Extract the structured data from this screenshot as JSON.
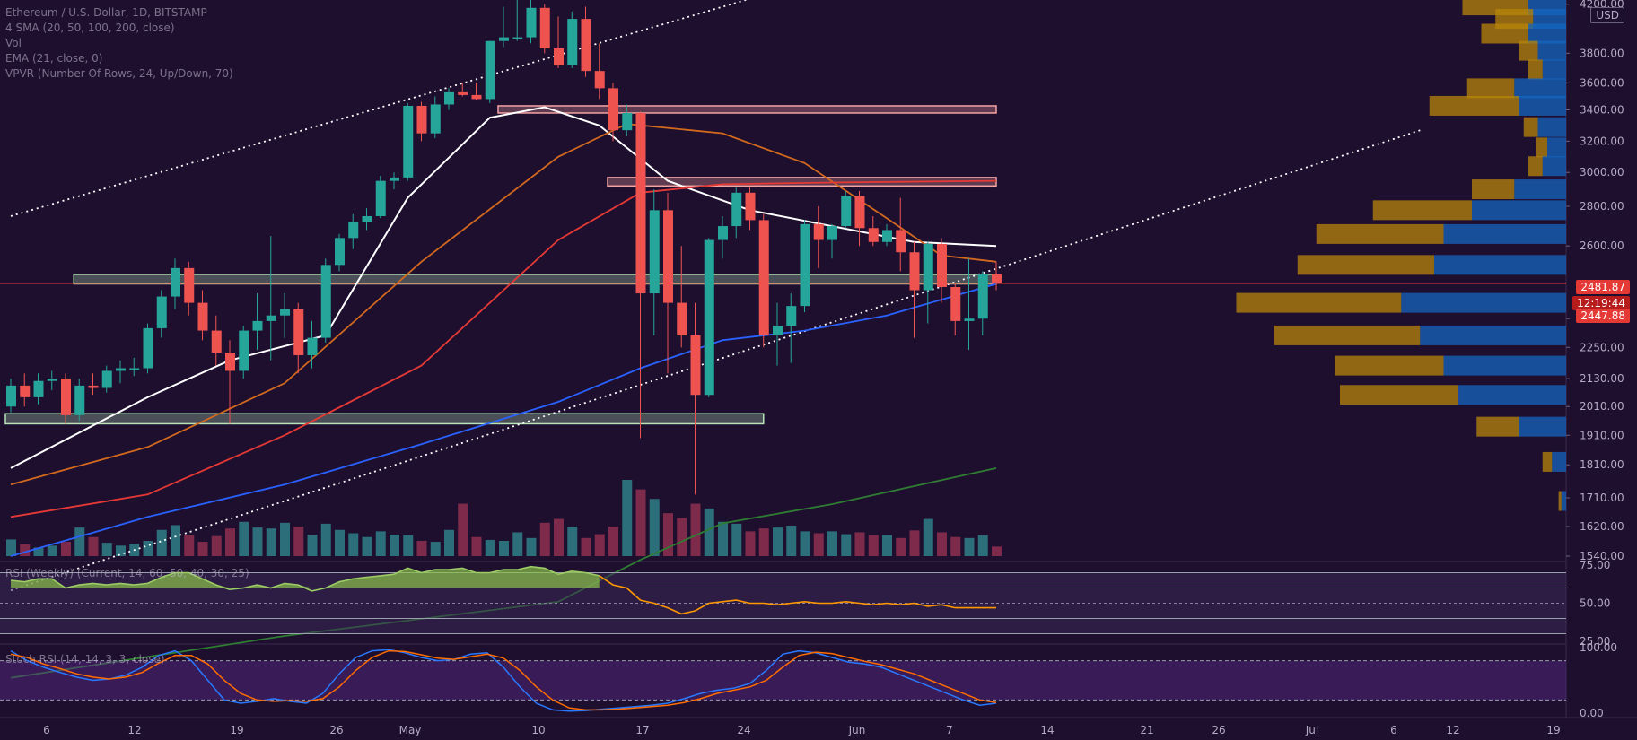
{
  "legend": {
    "symbol": "Ethereum / U.S. Dollar, 1D, BITSTAMP",
    "ma": "4 SMA (20, 50, 100, 200, close)",
    "vol": "Vol",
    "ema": "EMA (21, close, 0)",
    "vpvr": "VPVR (Number Of Rows, 24, Up/Down, 70)"
  },
  "indicators": {
    "rsi_label": "RSI (Weekly) (Current, 14, 60, 50, 40, 30, 25)",
    "stoch_label": "Stoch RSI (14, 14, 3, 3, close)"
  },
  "price_tags": {
    "last": "2481.87",
    "countdown": "12:19:44",
    "secondary": "2447.88",
    "currency": "USD"
  },
  "colors": {
    "background": "#1e0f2f",
    "up": "#26a69a",
    "down": "#ef5350",
    "sma20": "#ffffff",
    "sma50": "#d2691e",
    "sma100": "#e53935",
    "sma200": "#2e7d32",
    "ema21": "#2962ff",
    "vpvr_up": "#1565c0",
    "vpvr_down": "#b8860b"
  },
  "chart_data": {
    "type": "candlestick",
    "title": "Ethereum / U.S. Dollar, 1D, BITSTAMP",
    "y_ticks": [
      4200,
      3800,
      3600,
      3400,
      3200,
      3000,
      2800,
      2600,
      2370,
      2250,
      2130,
      2010,
      1910,
      1810,
      1710,
      1620,
      1540
    ],
    "y_tick_labels": [
      "4200.00",
      "3800.00",
      "3600.00",
      "3400.00",
      "3200.00",
      "3000.00",
      "2800.00",
      "2600.00",
      "2370.00",
      "2250.00",
      "2130.00",
      "2010.00",
      "1910.00",
      "1810.00",
      "1710.00",
      "1620.00",
      "1540.00"
    ],
    "x_labels": [
      "6",
      "12",
      "19",
      "26",
      "May",
      "10",
      "17",
      "24",
      "Jun",
      "7",
      "14",
      "21",
      "26",
      "Jul",
      "6",
      "12",
      "19"
    ],
    "candles": [
      {
        "o": 2010,
        "h": 2130,
        "l": 1990,
        "c": 2100
      },
      {
        "o": 2100,
        "h": 2150,
        "l": 2010,
        "c": 2050
      },
      {
        "o": 2050,
        "h": 2150,
        "l": 2020,
        "c": 2120
      },
      {
        "o": 2120,
        "h": 2160,
        "l": 2080,
        "c": 2130
      },
      {
        "o": 2130,
        "h": 2150,
        "l": 1950,
        "c": 1980
      },
      {
        "o": 1980,
        "h": 2130,
        "l": 1960,
        "c": 2100
      },
      {
        "o": 2100,
        "h": 2150,
        "l": 2060,
        "c": 2090
      },
      {
        "o": 2090,
        "h": 2180,
        "l": 2070,
        "c": 2160
      },
      {
        "o": 2160,
        "h": 2200,
        "l": 2110,
        "c": 2170
      },
      {
        "o": 2170,
        "h": 2210,
        "l": 2140,
        "c": 2170
      },
      {
        "o": 2170,
        "h": 2350,
        "l": 2150,
        "c": 2330
      },
      {
        "o": 2330,
        "h": 2460,
        "l": 2290,
        "c": 2440
      },
      {
        "o": 2440,
        "h": 2560,
        "l": 2400,
        "c": 2530
      },
      {
        "o": 2530,
        "h": 2550,
        "l": 2380,
        "c": 2420
      },
      {
        "o": 2420,
        "h": 2460,
        "l": 2280,
        "c": 2320
      },
      {
        "o": 2320,
        "h": 2380,
        "l": 2180,
        "c": 2230
      },
      {
        "o": 2230,
        "h": 2280,
        "l": 1950,
        "c": 2160
      },
      {
        "o": 2160,
        "h": 2340,
        "l": 2130,
        "c": 2320
      },
      {
        "o": 2320,
        "h": 2450,
        "l": 2240,
        "c": 2360
      },
      {
        "o": 2360,
        "h": 2650,
        "l": 2200,
        "c": 2380
      },
      {
        "o": 2380,
        "h": 2450,
        "l": 2290,
        "c": 2400
      },
      {
        "o": 2400,
        "h": 2420,
        "l": 2150,
        "c": 2220
      },
      {
        "o": 2220,
        "h": 2360,
        "l": 2170,
        "c": 2290
      },
      {
        "o": 2290,
        "h": 2560,
        "l": 2270,
        "c": 2540
      },
      {
        "o": 2540,
        "h": 2660,
        "l": 2520,
        "c": 2640
      },
      {
        "o": 2640,
        "h": 2760,
        "l": 2590,
        "c": 2720
      },
      {
        "o": 2720,
        "h": 2790,
        "l": 2680,
        "c": 2750
      },
      {
        "o": 2750,
        "h": 2980,
        "l": 2740,
        "c": 2950
      },
      {
        "o": 2950,
        "h": 3000,
        "l": 2900,
        "c": 2970
      },
      {
        "o": 2970,
        "h": 3450,
        "l": 2950,
        "c": 3430
      },
      {
        "o": 3430,
        "h": 3460,
        "l": 3200,
        "c": 3250
      },
      {
        "o": 3250,
        "h": 3500,
        "l": 3220,
        "c": 3440
      },
      {
        "o": 3440,
        "h": 3560,
        "l": 3400,
        "c": 3530
      },
      {
        "o": 3530,
        "h": 3600,
        "l": 3500,
        "c": 3510
      },
      {
        "o": 3510,
        "h": 3600,
        "l": 3470,
        "c": 3480
      },
      {
        "o": 3480,
        "h": 3900,
        "l": 3450,
        "c": 3900
      },
      {
        "o": 3900,
        "h": 4180,
        "l": 3850,
        "c": 3930
      },
      {
        "o": 3930,
        "h": 4360,
        "l": 3900,
        "c": 3930
      },
      {
        "o": 3930,
        "h": 4380,
        "l": 3880,
        "c": 4170
      },
      {
        "o": 4170,
        "h": 4200,
        "l": 3800,
        "c": 3840
      },
      {
        "o": 3840,
        "h": 4100,
        "l": 3700,
        "c": 3720
      },
      {
        "o": 3720,
        "h": 4140,
        "l": 3700,
        "c": 4080
      },
      {
        "o": 4080,
        "h": 4180,
        "l": 3640,
        "c": 3680
      },
      {
        "o": 3680,
        "h": 3880,
        "l": 3480,
        "c": 3560
      },
      {
        "o": 3560,
        "h": 3600,
        "l": 3200,
        "c": 3270
      },
      {
        "o": 3270,
        "h": 3440,
        "l": 3230,
        "c": 3380
      },
      {
        "o": 3380,
        "h": 3390,
        "l": 1900,
        "c": 2450
      },
      {
        "o": 2450,
        "h": 2900,
        "l": 2300,
        "c": 2780
      },
      {
        "o": 2780,
        "h": 2880,
        "l": 2150,
        "c": 2420
      },
      {
        "o": 2420,
        "h": 2600,
        "l": 2250,
        "c": 2300
      },
      {
        "o": 2300,
        "h": 2420,
        "l": 1720,
        "c": 2060
      },
      {
        "o": 2060,
        "h": 2640,
        "l": 2050,
        "c": 2630
      },
      {
        "o": 2630,
        "h": 2750,
        "l": 2560,
        "c": 2700
      },
      {
        "o": 2700,
        "h": 2910,
        "l": 2640,
        "c": 2880
      },
      {
        "o": 2880,
        "h": 2910,
        "l": 2680,
        "c": 2730
      },
      {
        "o": 2730,
        "h": 2760,
        "l": 2250,
        "c": 2300
      },
      {
        "o": 2300,
        "h": 2420,
        "l": 2180,
        "c": 2340
      },
      {
        "o": 2340,
        "h": 2450,
        "l": 2190,
        "c": 2410
      },
      {
        "o": 2410,
        "h": 2730,
        "l": 2390,
        "c": 2710
      },
      {
        "o": 2710,
        "h": 2800,
        "l": 2530,
        "c": 2630
      },
      {
        "o": 2630,
        "h": 2710,
        "l": 2560,
        "c": 2700
      },
      {
        "o": 2700,
        "h": 2890,
        "l": 2690,
        "c": 2860
      },
      {
        "o": 2860,
        "h": 2890,
        "l": 2600,
        "c": 2690
      },
      {
        "o": 2690,
        "h": 2750,
        "l": 2600,
        "c": 2620
      },
      {
        "o": 2620,
        "h": 2710,
        "l": 2600,
        "c": 2680
      },
      {
        "o": 2680,
        "h": 2850,
        "l": 2520,
        "c": 2580
      },
      {
        "o": 2580,
        "h": 2620,
        "l": 2290,
        "c": 2460
      },
      {
        "o": 2460,
        "h": 2620,
        "l": 2350,
        "c": 2610
      },
      {
        "o": 2610,
        "h": 2640,
        "l": 2420,
        "c": 2470
      },
      {
        "o": 2470,
        "h": 2480,
        "l": 2300,
        "c": 2360
      },
      {
        "o": 2360,
        "h": 2560,
        "l": 2240,
        "c": 2370
      },
      {
        "o": 2370,
        "h": 2520,
        "l": 2300,
        "c": 2510
      },
      {
        "o": 2510,
        "h": 2550,
        "l": 2460,
        "c": 2482
      }
    ],
    "volumes": [
      35,
      25,
      18,
      22,
      30,
      60,
      40,
      28,
      22,
      26,
      32,
      55,
      65,
      45,
      30,
      42,
      58,
      72,
      60,
      58,
      70,
      62,
      45,
      68,
      55,
      48,
      40,
      52,
      45,
      44,
      32,
      30,
      55,
      110,
      40,
      34,
      32,
      50,
      38,
      70,
      78,
      62,
      38,
      46,
      62,
      160,
      140,
      120,
      90,
      80,
      110,
      100,
      72,
      68,
      52,
      58,
      60,
      64,
      52,
      48,
      52,
      46,
      50,
      44,
      44,
      38,
      54,
      78,
      50,
      40,
      38,
      44,
      20
    ],
    "overlays": [
      {
        "name": "SMA 20",
        "color": "#ffffff",
        "points": [
          [
            0,
            1800
          ],
          [
            10,
            2050
          ],
          [
            16,
            2200
          ],
          [
            23,
            2300
          ],
          [
            29,
            2850
          ],
          [
            35,
            3350
          ],
          [
            39,
            3420
          ],
          [
            43,
            3300
          ],
          [
            48,
            2950
          ],
          [
            54,
            2780
          ],
          [
            60,
            2700
          ],
          [
            66,
            2620
          ],
          [
            72,
            2600
          ]
        ]
      },
      {
        "name": "SMA 50",
        "color": "#d2691e",
        "points": [
          [
            0,
            1750
          ],
          [
            10,
            1870
          ],
          [
            20,
            2110
          ],
          [
            30,
            2550
          ],
          [
            40,
            3100
          ],
          [
            45,
            3310
          ],
          [
            52,
            3250
          ],
          [
            58,
            3060
          ],
          [
            64,
            2740
          ],
          [
            68,
            2570
          ],
          [
            72,
            2550
          ]
        ]
      },
      {
        "name": "SMA 100",
        "color": "#e53935",
        "points": [
          [
            0,
            1650
          ],
          [
            10,
            1720
          ],
          [
            20,
            1910
          ],
          [
            30,
            2180
          ],
          [
            40,
            2630
          ],
          [
            46,
            2880
          ],
          [
            52,
            2930
          ],
          [
            60,
            2940
          ],
          [
            72,
            2950
          ]
        ]
      },
      {
        "name": "SMA 200",
        "color": "#2e7d32",
        "points": [
          [
            0,
            1220
          ],
          [
            20,
            1330
          ],
          [
            40,
            1420
          ],
          [
            46,
            1530
          ],
          [
            52,
            1630
          ],
          [
            60,
            1690
          ],
          [
            72,
            1800
          ]
        ]
      },
      {
        "name": "EMA 21",
        "color": "#2962ff",
        "points": [
          [
            0,
            1540
          ],
          [
            10,
            1650
          ],
          [
            20,
            1750
          ],
          [
            30,
            1880
          ],
          [
            40,
            2030
          ],
          [
            46,
            2170
          ],
          [
            52,
            2280
          ],
          [
            58,
            2320
          ],
          [
            64,
            2380
          ],
          [
            72,
            2480
          ]
        ]
      }
    ],
    "horizontal_zones": [
      {
        "from": 3380,
        "to": 3430,
        "x1": 36,
        "x2": 72,
        "color": "#f4a3a3"
      },
      {
        "from": 2920,
        "to": 2970,
        "x1": 44,
        "x2": 72,
        "color": "#f4a3a3"
      },
      {
        "from": 2480,
        "to": 2510,
        "x1": 5,
        "x2": 72,
        "color": "#b7e4b7"
      },
      {
        "from": 1950,
        "to": 1985,
        "x1": 0,
        "x2": 55,
        "color": "#b7e4b7"
      }
    ],
    "trendlines": [
      {
        "p1": [
          0,
          2750
        ],
        "p2": [
          56,
          4300
        ]
      },
      {
        "p1": [
          0,
          1450
        ],
        "p2": [
          103,
          3270
        ]
      }
    ],
    "vpvr": [
      {
        "price": 4190,
        "up": 40,
        "down": 70
      },
      {
        "price": 4080,
        "up": 35,
        "down": 40
      },
      {
        "price": 3960,
        "up": 40,
        "down": 50
      },
      {
        "price": 3820,
        "up": 30,
        "down": 20
      },
      {
        "price": 3690,
        "up": 25,
        "down": 15
      },
      {
        "price": 3560,
        "up": 55,
        "down": 50
      },
      {
        "price": 3430,
        "up": 50,
        "down": 95
      },
      {
        "price": 3290,
        "up": 30,
        "down": 15
      },
      {
        "price": 3160,
        "up": 20,
        "down": 12
      },
      {
        "price": 3040,
        "up": 25,
        "down": 15
      },
      {
        "price": 2900,
        "up": 55,
        "down": 45
      },
      {
        "price": 2780,
        "up": 100,
        "down": 105
      },
      {
        "price": 2660,
        "up": 130,
        "down": 135
      },
      {
        "price": 2540,
        "up": 140,
        "down": 145
      },
      {
        "price": 2420,
        "up": 175,
        "down": 175
      },
      {
        "price": 2300,
        "up": 155,
        "down": 155
      },
      {
        "price": 2180,
        "up": 130,
        "down": 115
      },
      {
        "price": 2060,
        "up": 115,
        "down": 125
      },
      {
        "price": 1940,
        "up": 50,
        "down": 45
      },
      {
        "price": 1820,
        "up": 15,
        "down": 10
      },
      {
        "price": 1700,
        "up": 5,
        "down": 3
      }
    ],
    "rsi": {
      "ylim": [
        25,
        75
      ],
      "ticks": [
        "75.00",
        "50.00",
        "25.00"
      ],
      "values": [
        65,
        64,
        66,
        66,
        60,
        62,
        63,
        62,
        63,
        62,
        63,
        67,
        70,
        70,
        66,
        62,
        59,
        60,
        62,
        60,
        63,
        62,
        58,
        60,
        64,
        66,
        67,
        68,
        69,
        73,
        70,
        72,
        72,
        73,
        70,
        70,
        72,
        72,
        74,
        73,
        69,
        71,
        70,
        68,
        62,
        60,
        52,
        50,
        47,
        43,
        45,
        50,
        51,
        52,
        50,
        50,
        49,
        50,
        51,
        50,
        50,
        51,
        50,
        49,
        50,
        49,
        50,
        48,
        49,
        47,
        47,
        47,
        47
      ]
    },
    "stoch": {
      "ylim": [
        0,
        100
      ],
      "ticks": [
        "100.00",
        "0.00"
      ],
      "k": [
        95,
        80,
        70,
        62,
        55,
        50,
        52,
        58,
        70,
        88,
        95,
        80,
        50,
        20,
        15,
        18,
        22,
        18,
        15,
        30,
        60,
        85,
        95,
        97,
        92,
        85,
        80,
        82,
        90,
        92,
        70,
        40,
        15,
        5,
        3,
        4,
        6,
        8,
        10,
        12,
        15,
        22,
        30,
        35,
        38,
        45,
        65,
        90,
        95,
        92,
        85,
        78,
        75,
        70,
        60,
        50,
        40,
        30,
        20,
        12,
        15
      ],
      "d": [
        90,
        85,
        75,
        68,
        60,
        55,
        52,
        55,
        62,
        76,
        88,
        88,
        75,
        50,
        30,
        20,
        18,
        19,
        18,
        22,
        40,
        65,
        85,
        95,
        94,
        89,
        84,
        82,
        86,
        90,
        84,
        65,
        40,
        20,
        8,
        5,
        5,
        6,
        8,
        10,
        12,
        16,
        22,
        30,
        35,
        40,
        50,
        70,
        88,
        93,
        91,
        85,
        79,
        74,
        67,
        60,
        50,
        40,
        30,
        20,
        16
      ]
    }
  }
}
